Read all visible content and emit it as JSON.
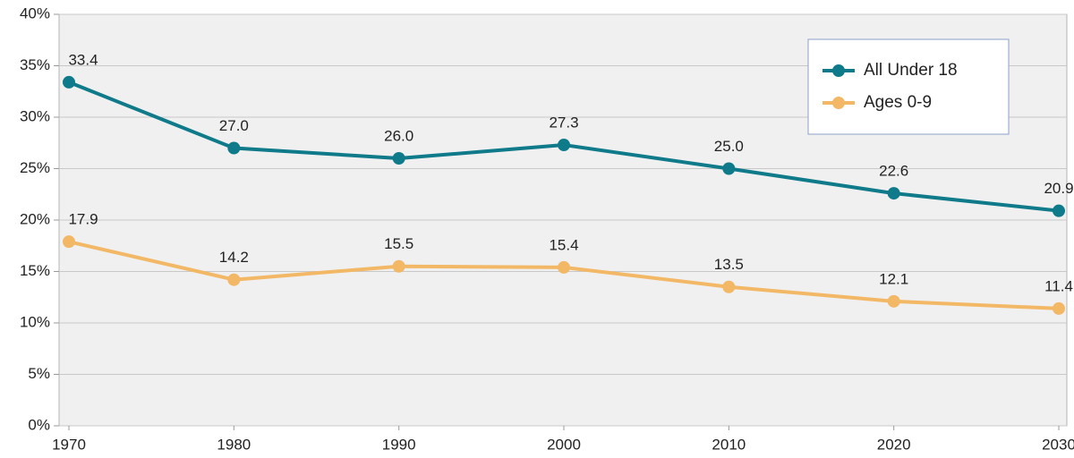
{
  "chart_data": {
    "type": "line",
    "x": [
      1970,
      1980,
      1990,
      2000,
      2010,
      2020,
      2030
    ],
    "xlim": [
      1970,
      2030
    ],
    "xticks": [
      1970,
      1980,
      1990,
      2000,
      2010,
      2020,
      2030
    ],
    "ylim": [
      0,
      40
    ],
    "yticks": [
      {
        "value": 0,
        "label": "0%"
      },
      {
        "value": 5,
        "label": "5%"
      },
      {
        "value": 10,
        "label": "10%"
      },
      {
        "value": 15,
        "label": "15%"
      },
      {
        "value": 20,
        "label": "20%"
      },
      {
        "value": 25,
        "label": "25%"
      },
      {
        "value": 30,
        "label": "30%"
      },
      {
        "value": 35,
        "label": "35%"
      },
      {
        "value": 40,
        "label": "40%"
      }
    ],
    "grid": true,
    "legend": "upper right",
    "series": [
      {
        "name": "All Under 18",
        "color": "#0f7a89",
        "values": [
          33.4,
          27.0,
          26.0,
          27.3,
          25.0,
          22.6,
          20.9
        ],
        "value_labels": [
          "33.4",
          "27.0",
          "26.0",
          "27.3",
          "25.0",
          "22.6",
          "20.9"
        ]
      },
      {
        "name": "Ages 0-9",
        "color": "#f2b866",
        "values": [
          17.9,
          14.2,
          15.5,
          15.4,
          13.5,
          12.1,
          11.4
        ],
        "value_labels": [
          "17.9",
          "14.2",
          "15.5",
          "15.4",
          "13.5",
          "12.1",
          "11.4"
        ]
      }
    ]
  }
}
